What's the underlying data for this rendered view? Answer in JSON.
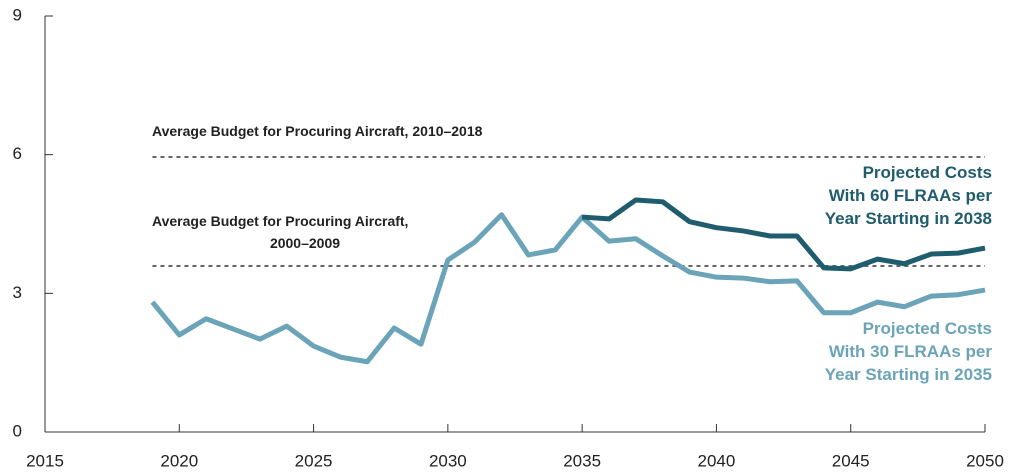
{
  "chart_data": {
    "type": "line",
    "x": [
      2019,
      2020,
      2021,
      2022,
      2023,
      2024,
      2025,
      2026,
      2027,
      2028,
      2029,
      2030,
      2031,
      2032,
      2033,
      2034,
      2035,
      2036,
      2037,
      2038,
      2039,
      2040,
      2041,
      2042,
      2043,
      2044,
      2045,
      2046,
      2047,
      2048,
      2049,
      2050
    ],
    "series": [
      {
        "name": [
          "Projected Costs",
          "With 30 FLRAAs per",
          "Year Starting in 2035"
        ],
        "color": "#6ba4b9",
        "values": [
          2.81,
          2.1,
          2.45,
          2.23,
          2.01,
          2.29,
          1.86,
          1.62,
          1.52,
          2.25,
          1.9,
          3.72,
          4.11,
          4.7,
          3.83,
          3.94,
          4.65,
          4.13,
          4.18,
          3.81,
          3.46,
          3.35,
          3.33,
          3.25,
          3.27,
          2.58,
          2.58,
          2.81,
          2.71,
          2.94,
          2.97,
          3.07
        ]
      },
      {
        "name": [
          "Projected Costs",
          "With 60 FLRAAs per",
          "Year Starting in 2038"
        ],
        "color": "#1f5c6d",
        "values": [
          null,
          null,
          null,
          null,
          null,
          null,
          null,
          null,
          null,
          null,
          null,
          null,
          null,
          null,
          null,
          null,
          4.65,
          4.61,
          5.02,
          4.98,
          4.55,
          4.42,
          4.35,
          4.24,
          4.24,
          3.55,
          3.53,
          3.74,
          3.64,
          3.85,
          3.87,
          3.98
        ]
      }
    ],
    "reference_lines": [
      {
        "value": 5.95,
        "label": [
          "Average Budget for Procuring Aircraft, 2010–2018"
        ]
      },
      {
        "value": 3.59,
        "label": [
          "Average Budget for Procuring Aircraft,",
          "2000–2009"
        ]
      }
    ],
    "xlim": [
      2015,
      2050
    ],
    "xticks": [
      2015,
      2020,
      2025,
      2030,
      2035,
      2040,
      2045,
      2050
    ],
    "ylim": [
      0,
      9
    ],
    "yticks": [
      0,
      3,
      6,
      9
    ]
  }
}
